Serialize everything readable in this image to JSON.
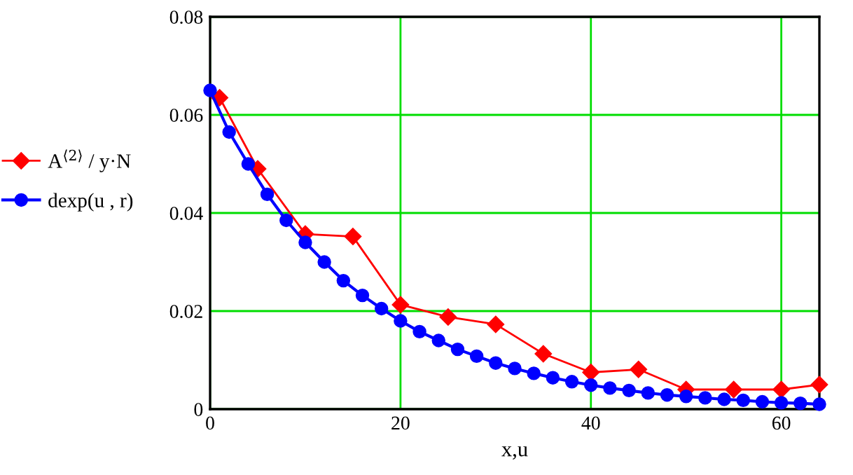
{
  "chart_data": {
    "type": "line",
    "xlabel": "x,u",
    "xlim": [
      0,
      64
    ],
    "ylim": [
      0,
      0.08
    ],
    "xticks": [
      0,
      20,
      40,
      60
    ],
    "yticks": [
      0,
      0.02,
      0.04,
      0.06,
      0.08
    ],
    "grid": true,
    "legend": "left",
    "series": [
      {
        "name": "A$^{⟨2⟩}$ / y·N",
        "color": "#ff0000",
        "marker": "diamond",
        "x": [
          1,
          5,
          10,
          15,
          20,
          25,
          30,
          35,
          40,
          45,
          50,
          55,
          60,
          64
        ],
        "values": [
          0.0635,
          0.049,
          0.0357,
          0.0352,
          0.0213,
          0.0188,
          0.0173,
          0.0113,
          0.0075,
          0.0081,
          0.004,
          0.004,
          0.004,
          0.005
        ]
      },
      {
        "name": "dexp(u , r)",
        "color": "#0000ff",
        "marker": "circle",
        "x": [
          0,
          2,
          4,
          6,
          8,
          10,
          12,
          14,
          16,
          18,
          20,
          22,
          24,
          26,
          28,
          30,
          32,
          34,
          36,
          38,
          40,
          42,
          44,
          46,
          48,
          50,
          52,
          54,
          56,
          58,
          60,
          62,
          64
        ],
        "values": [
          0.065,
          0.0565,
          0.05,
          0.0438,
          0.0385,
          0.034,
          0.03,
          0.0262,
          0.0232,
          0.0205,
          0.018,
          0.0158,
          0.014,
          0.0122,
          0.0108,
          0.0094,
          0.0083,
          0.0073,
          0.0064,
          0.0056,
          0.0049,
          0.0043,
          0.0038,
          0.0033,
          0.0029,
          0.0026,
          0.0023,
          0.002,
          0.0018,
          0.0015,
          0.0013,
          0.0012,
          0.001
        ]
      }
    ]
  }
}
